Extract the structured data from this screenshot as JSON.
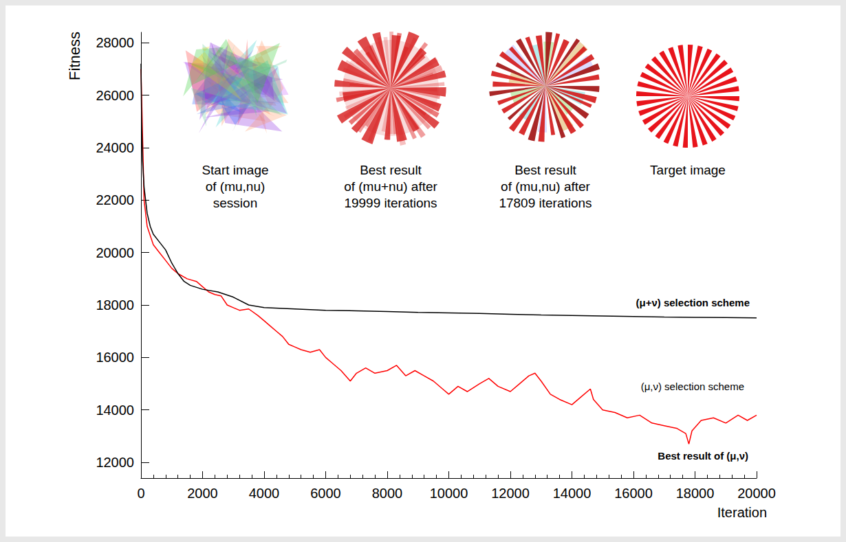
{
  "chart_data": {
    "type": "line",
    "x_label": "Iteration",
    "y_label": "Fitness",
    "xlim": [
      0,
      20000
    ],
    "xticks": [
      0,
      2000,
      4000,
      6000,
      8000,
      10000,
      12000,
      14000,
      16000,
      18000,
      20000
    ],
    "ylim": [
      11400,
      28400
    ],
    "yticks": [
      12000,
      14000,
      16000,
      18000,
      20000,
      22000,
      24000,
      26000,
      28000
    ],
    "grid": false,
    "series": [
      {
        "name": "(μ+ν) selection scheme",
        "color": "#000000",
        "line_style": "solid",
        "x": [
          0,
          20,
          50,
          100,
          200,
          300,
          400,
          600,
          800,
          1000,
          1200,
          1400,
          1600,
          2000,
          2500,
          3000,
          3500,
          4000,
          5000,
          6000,
          7000,
          8000,
          9000,
          10000,
          11000,
          12000,
          13000,
          14000,
          15000,
          16000,
          17000,
          18000,
          19000,
          20000
        ],
        "values": [
          27200,
          25000,
          23500,
          22500,
          21500,
          21000,
          20700,
          20400,
          20100,
          19600,
          19200,
          18900,
          18750,
          18600,
          18500,
          18300,
          18000,
          17900,
          17850,
          17800,
          17780,
          17750,
          17720,
          17700,
          17680,
          17650,
          17620,
          17600,
          17580,
          17560,
          17540,
          17530,
          17520,
          17510
        ]
      },
      {
        "name": "(μ,ν) selection scheme",
        "color": "#ff0000",
        "line_style": "solid",
        "x": [
          0,
          100,
          200,
          400,
          600,
          800,
          1000,
          1200,
          1500,
          1800,
          2000,
          2200,
          2400,
          2600,
          2800,
          3000,
          3200,
          3500,
          3800,
          4000,
          4200,
          4400,
          4600,
          4800,
          5000,
          5200,
          5500,
          5800,
          6000,
          6200,
          6500,
          6800,
          7000,
          7300,
          7600,
          8000,
          8300,
          8600,
          8900,
          9200,
          9500,
          9800,
          10000,
          10300,
          10600,
          11000,
          11300,
          11600,
          12000,
          12300,
          12600,
          12800,
          13000,
          13300,
          13600,
          14000,
          14300,
          14600,
          14700,
          15000,
          15400,
          15800,
          16200,
          16600,
          17000,
          17400,
          17700,
          17800,
          17900,
          18200,
          18600,
          19000,
          19400,
          19700,
          20000
        ],
        "values": [
          27000,
          22000,
          21000,
          20300,
          20000,
          19700,
          19400,
          19200,
          19000,
          18900,
          18700,
          18500,
          18400,
          18350,
          18000,
          17900,
          17800,
          17850,
          17600,
          17400,
          17200,
          17000,
          16800,
          16500,
          16400,
          16300,
          16200,
          16300,
          16000,
          15800,
          15500,
          15100,
          15400,
          15600,
          15400,
          15500,
          15700,
          15300,
          15500,
          15300,
          15100,
          14800,
          14600,
          14900,
          14700,
          15000,
          15200,
          14900,
          14700,
          15000,
          15300,
          15400,
          15100,
          14600,
          14400,
          14200,
          14500,
          14800,
          14400,
          14000,
          13900,
          13700,
          13800,
          13500,
          13400,
          13300,
          13100,
          12700,
          13200,
          13600,
          13700,
          13500,
          13800,
          13600,
          13800
        ]
      }
    ],
    "annotations": [
      {
        "text": "Best result of (μ,ν)"
      }
    ],
    "insets": [
      {
        "caption": "Start image\nof (mu,nu)\nsession"
      },
      {
        "caption": "Best result\nof (mu+nu) after\n19999 iterations"
      },
      {
        "caption": "Best result\nof (mu,nu) after\n17809 iterations"
      },
      {
        "caption": "Target image"
      }
    ]
  }
}
